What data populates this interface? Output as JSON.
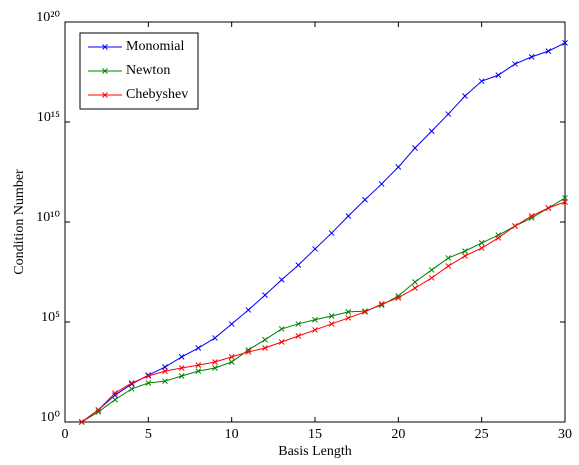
{
  "chart_data": {
    "type": "line",
    "x_label": "Basis Length",
    "y_label": "Condition Number",
    "log_y": true,
    "legend": "upper left",
    "xlim": [
      0,
      30
    ],
    "xticks": [
      0,
      5,
      10,
      15,
      20,
      25,
      30
    ],
    "ylim": [
      1,
      1e+20
    ],
    "yticks": [
      {
        "value": 1,
        "label": "10⁰"
      },
      {
        "value": 100000.0,
        "label": "10⁵"
      },
      {
        "value": 10000000000.0,
        "label": "10¹⁰"
      },
      {
        "value": 1000000000000000.0,
        "label": "10¹⁵"
      },
      {
        "value": 1e+20,
        "label": "10²⁰"
      }
    ],
    "x": [
      1,
      2,
      3,
      4,
      5,
      6,
      7,
      8,
      9,
      10,
      11,
      12,
      13,
      14,
      15,
      16,
      17,
      18,
      19,
      20,
      21,
      22,
      23,
      24,
      25,
      26,
      27,
      28,
      29,
      30
    ],
    "series": [
      {
        "name": "Monomial",
        "color": "#0000ff",
        "values": [
          1,
          4,
          22,
          79,
          220,
          560,
          1800,
          5000,
          16000,
          79000,
          400000,
          2200000,
          13000000,
          70000000,
          450000000,
          2800000000,
          20000000000,
          130000000000,
          800000000000,
          5600000000000,
          50000000000000,
          350000000000000,
          2500000000000000,
          20000000000000000,
          110000000000000000,
          220000000000000000,
          800000000000000000,
          1800000000000000000,
          3500000000000000000,
          9000000000000000000
        ]
      },
      {
        "name": "Newton",
        "color": "#008000",
        "values": [
          1,
          3.2,
          13,
          45,
          89,
          110,
          200,
          350,
          500,
          1000,
          4000,
          13000,
          45000,
          80000,
          130000,
          200000,
          320000,
          350000,
          700000,
          2000000,
          10000000,
          40000000,
          160000000,
          350000000,
          900000000,
          2200000000,
          6300000000,
          16000000000,
          50000000000,
          160000000000
        ]
      },
      {
        "name": "Chebyshev",
        "color": "#ff0000",
        "values": [
          1,
          4,
          28,
          89,
          200,
          350,
          500,
          700,
          1000,
          1800,
          3200,
          5000,
          10000,
          20000,
          40000,
          80000,
          160000,
          320000,
          800000,
          1600000,
          5000000,
          16000000,
          63000000,
          200000000,
          500000000,
          1600000000,
          6300000000,
          20000000000,
          50000000000,
          100000000000
        ]
      }
    ]
  }
}
